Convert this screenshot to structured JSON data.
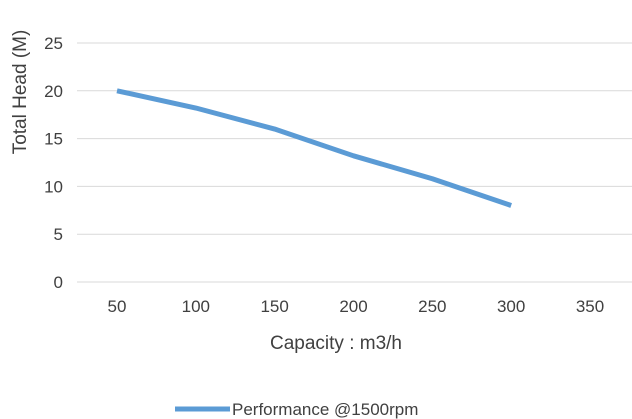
{
  "chart_data": {
    "type": "line",
    "title": "",
    "xlabel": "Capacity : m3/h",
    "ylabel": "Total Head (M)",
    "x_ticks": [
      "50",
      "100",
      "150",
      "200",
      "250",
      "300",
      "350"
    ],
    "y_ticks": [
      "0",
      "5",
      "10",
      "15",
      "20",
      "25"
    ],
    "xlim": [
      50,
      350
    ],
    "ylim": [
      0,
      25
    ],
    "grid": true,
    "legend": "bottom",
    "series": [
      {
        "name": "Performance @1500rpm",
        "color": "#5b9bd5",
        "x": [
          50,
          100,
          150,
          200,
          250,
          300
        ],
        "y": [
          20,
          18.2,
          16,
          13.2,
          10.8,
          8
        ]
      }
    ]
  }
}
